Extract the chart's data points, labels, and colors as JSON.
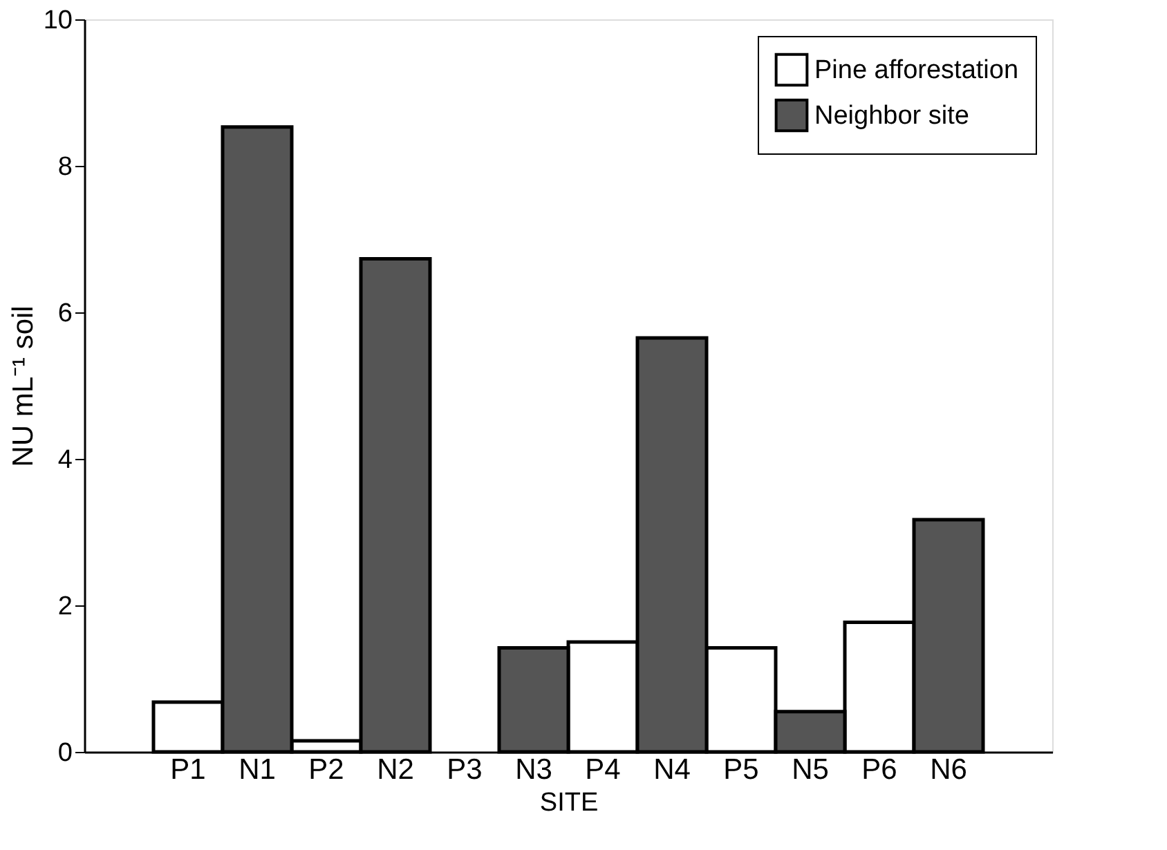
{
  "chart_data": {
    "type": "bar",
    "xlabel": "SITE",
    "ylabel": "NU mL⁻¹ soil",
    "categories": [
      "P1",
      "N1",
      "P2",
      "N2",
      "P3",
      "N3",
      "P4",
      "N4",
      "P5",
      "N5",
      "P6",
      "N6"
    ],
    "series": [
      {
        "name": "Pine afforestation",
        "color": "#ffffff",
        "values": [
          0.68,
          null,
          0.15,
          null,
          null,
          null,
          1.5,
          null,
          1.42,
          null,
          1.77,
          null
        ]
      },
      {
        "name": "Neighbor site",
        "color": "#555555",
        "values": [
          null,
          8.53,
          null,
          6.73,
          null,
          1.42,
          null,
          5.65,
          null,
          0.55,
          null,
          3.17
        ]
      }
    ],
    "ylim": [
      0,
      10
    ],
    "yticks": [
      0,
      2,
      4,
      6,
      8,
      10
    ],
    "grid": false,
    "legend": "top right"
  }
}
